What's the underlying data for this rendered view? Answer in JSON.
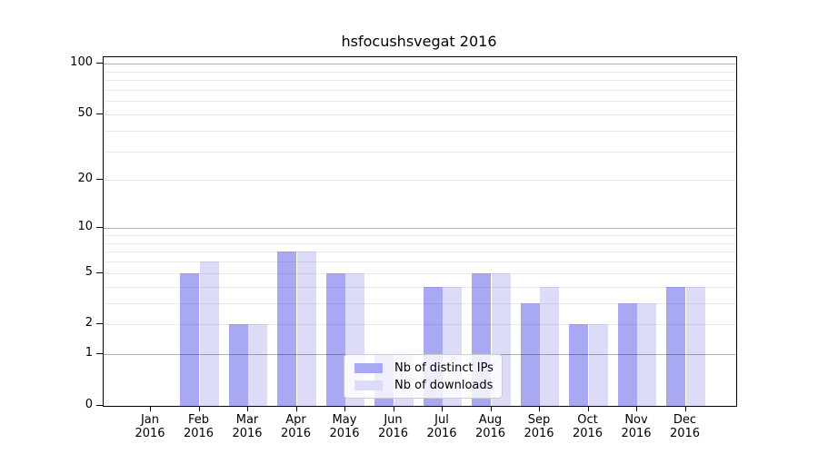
{
  "title": "hsfocushsvegat 2016",
  "chart_data": {
    "type": "bar",
    "title": "hsfocushsvegat 2016",
    "categories": [
      "Jan",
      "Feb",
      "Mar",
      "Apr",
      "May",
      "Jun",
      "Jul",
      "Aug",
      "Sep",
      "Oct",
      "Nov",
      "Dec"
    ],
    "category_year": "2016",
    "series": [
      {
        "name": "Nb of distinct IPs",
        "color": "#a9a9f3",
        "values": [
          0,
          5,
          2,
          7,
          5,
          1,
          4,
          5,
          3,
          2,
          3,
          4
        ]
      },
      {
        "name": "Nb of downloads",
        "color": "#dcdcf8",
        "values": [
          0,
          6,
          2,
          7,
          5,
          1,
          4,
          5,
          4,
          2,
          3,
          4
        ]
      }
    ],
    "yaxis": {
      "scale": "log1p",
      "ylim": [
        0,
        100
      ],
      "tick_values": [
        0,
        1,
        2,
        5,
        10,
        20,
        50,
        100
      ],
      "tick_labels": [
        "0",
        "1",
        "2",
        "5",
        "10",
        "20",
        "50",
        "100"
      ],
      "major_gridlines": [
        1,
        10,
        100
      ],
      "minor_gridlines": [
        2,
        3,
        4,
        5,
        6,
        7,
        8,
        9,
        20,
        30,
        40,
        50,
        60,
        70,
        80,
        90
      ]
    },
    "legend": {
      "position": "bottom-center",
      "entries": [
        "Nb of distinct IPs",
        "Nb of downloads"
      ]
    },
    "grid": true
  },
  "colors": {
    "background": "#ffffff",
    "spine": "#000000",
    "bar_distinct_ips": "#a9a9f3",
    "bar_downloads": "#dcdcf8",
    "major_grid": "rgba(0,0,0,0.30)",
    "minor_grid": "rgba(0,0,0,0.08)",
    "legend_border": "#cccccc"
  }
}
